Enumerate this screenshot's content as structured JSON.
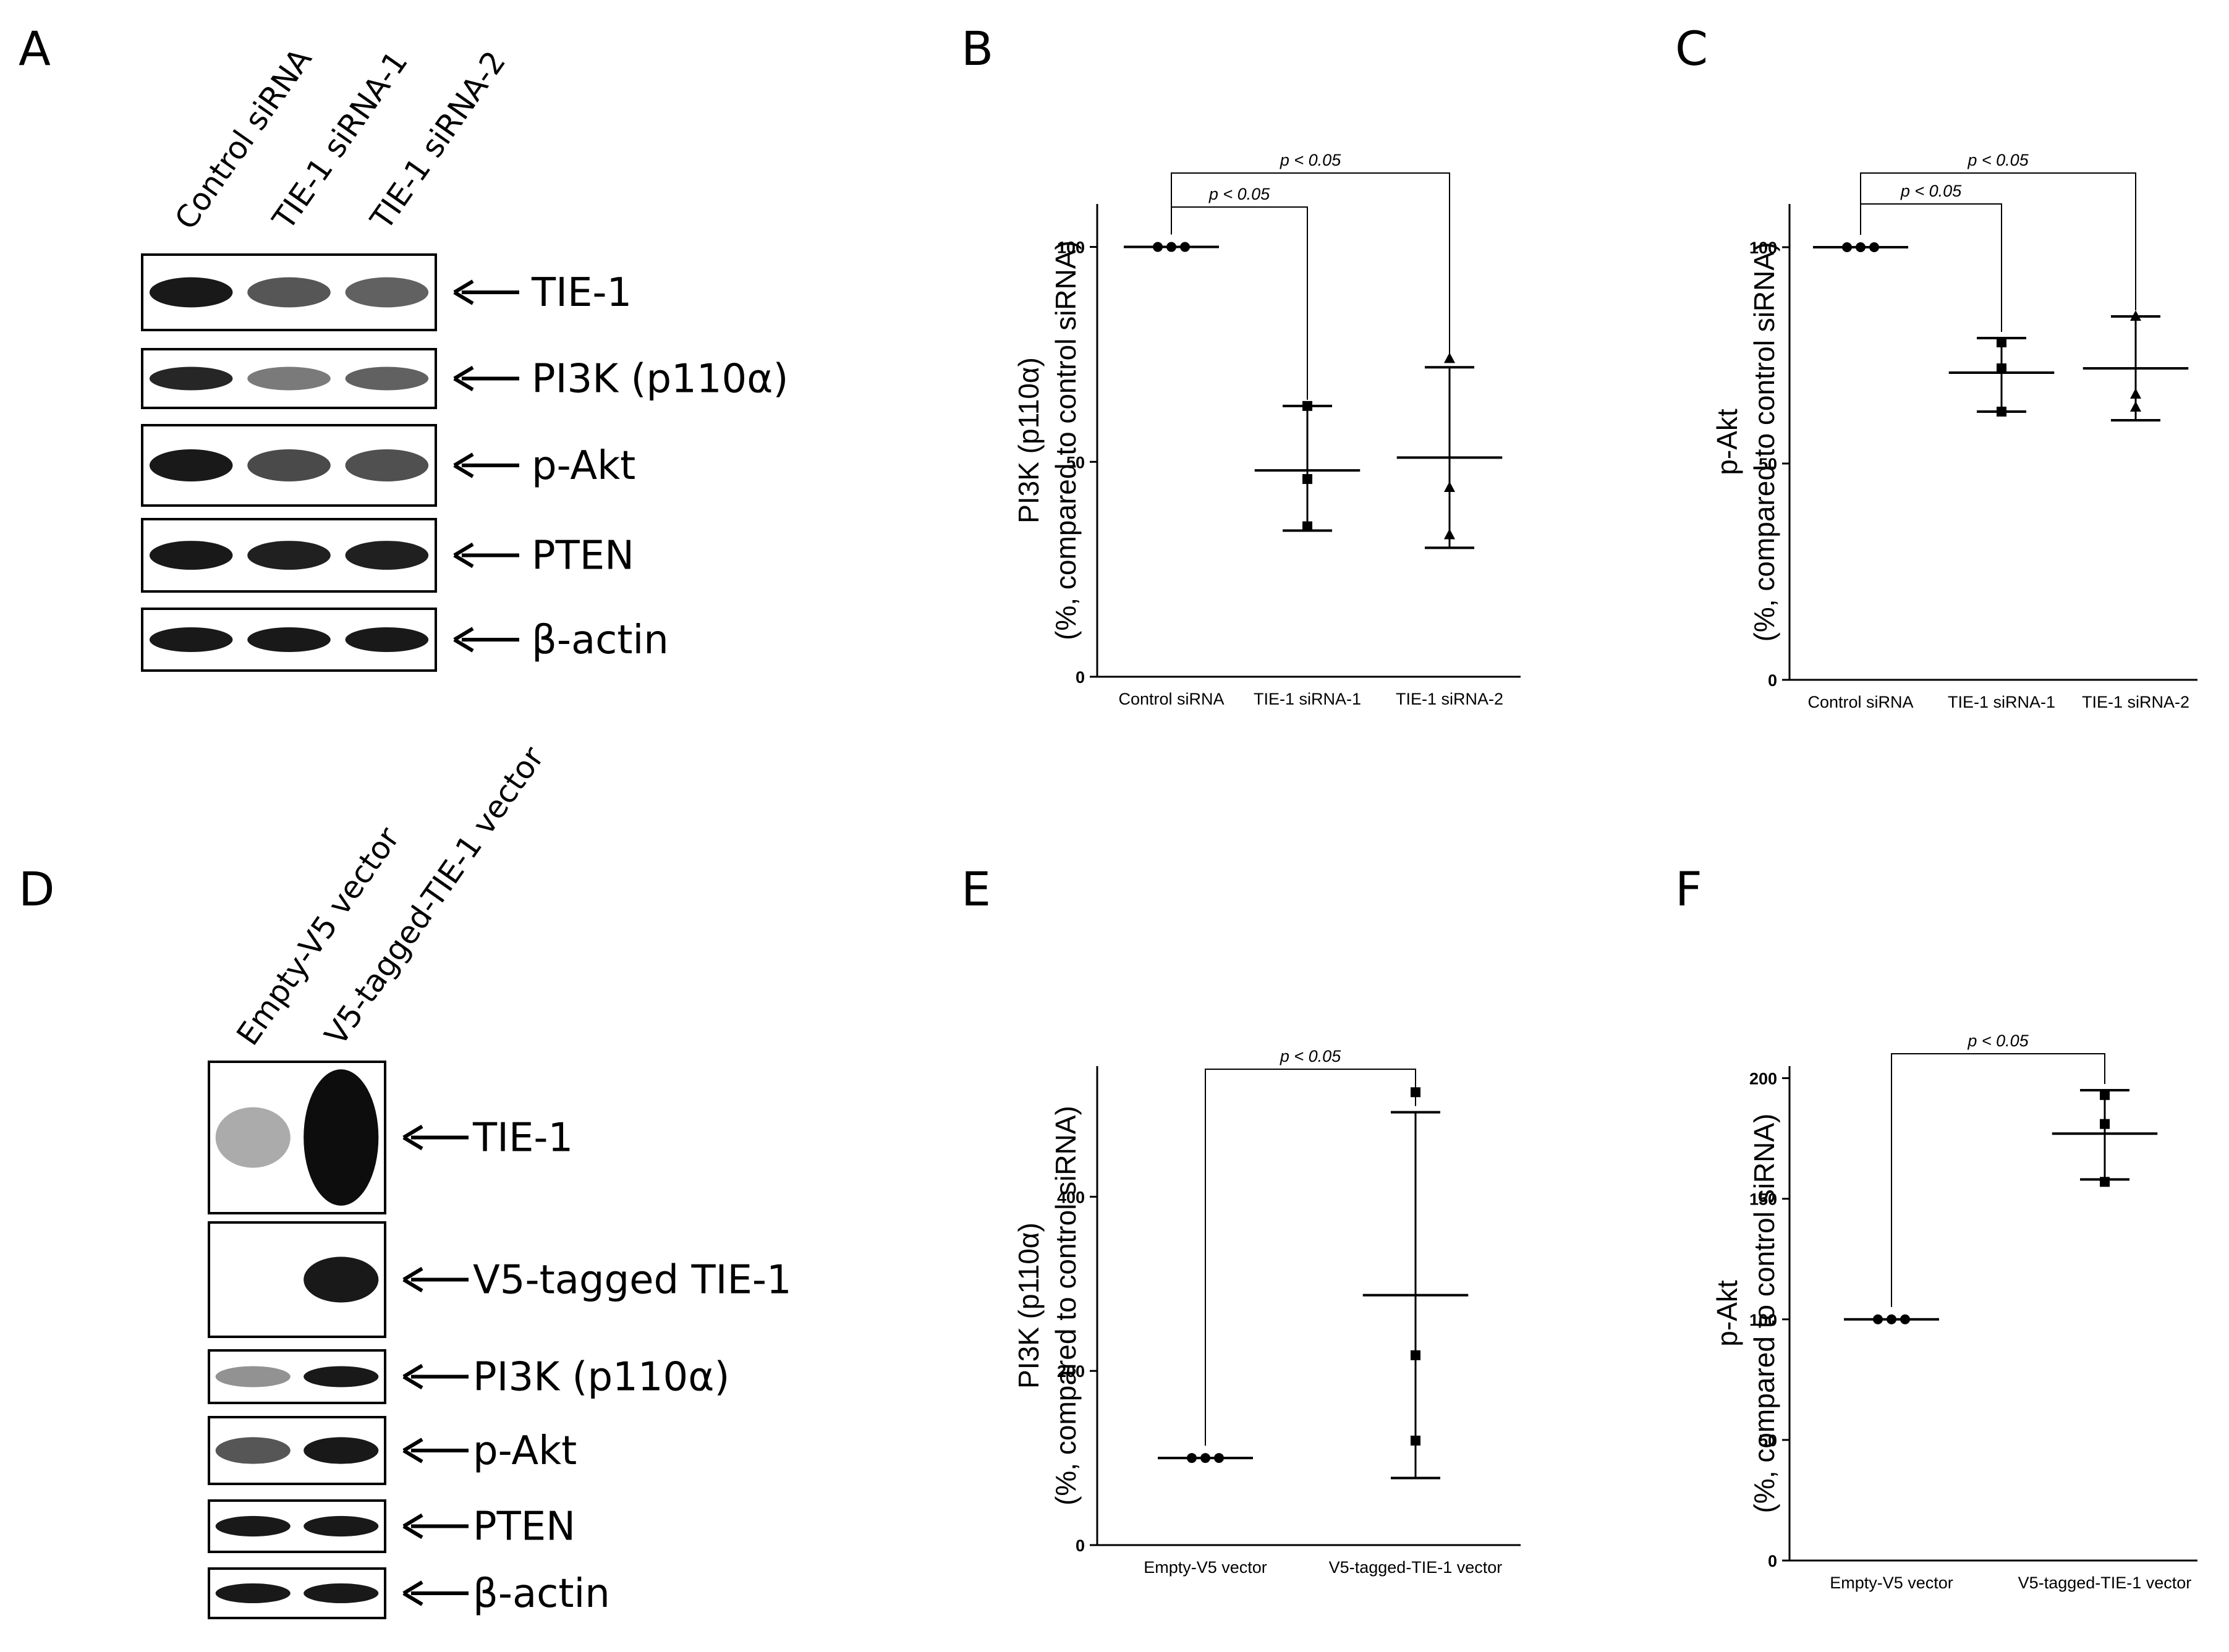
{
  "panels": {
    "A": "A",
    "B": "B",
    "C": "C",
    "D": "D",
    "E": "E",
    "F": "F"
  },
  "blots": [
    {
      "id": "A",
      "lanes": [
        "Control siRNA",
        "TIE-1 siRNA-1",
        "TIE-1 siRNA-2"
      ],
      "bands": [
        {
          "label": "TIE-1",
          "intensity": [
            0.95,
            0.7,
            0.65
          ]
        },
        {
          "label": "PI3K (p110α)",
          "intensity": [
            0.9,
            0.55,
            0.65
          ]
        },
        {
          "label": "p-Akt",
          "intensity": [
            0.95,
            0.75,
            0.72
          ]
        },
        {
          "label": "PTEN",
          "intensity": [
            0.95,
            0.92,
            0.92
          ]
        },
        {
          "label": "β-actin",
          "intensity": [
            0.95,
            0.95,
            0.95
          ]
        }
      ]
    },
    {
      "id": "D",
      "lanes": [
        "Empty-V5 vector",
        "V5-tagged-TIE-1 vector"
      ],
      "bands": [
        {
          "label": "TIE-1",
          "intensity": [
            0.35,
            1.0
          ]
        },
        {
          "label": "V5-tagged TIE-1",
          "intensity": [
            0.0,
            0.95
          ]
        },
        {
          "label": "PI3K (p110α)",
          "intensity": [
            0.45,
            0.95
          ]
        },
        {
          "label": "p-Akt",
          "intensity": [
            0.7,
            0.95
          ]
        },
        {
          "label": "PTEN",
          "intensity": [
            0.95,
            0.95
          ]
        },
        {
          "label": "β-actin",
          "intensity": [
            0.95,
            0.95
          ]
        }
      ]
    }
  ],
  "chart_data": [
    {
      "id": "B",
      "type": "scatter",
      "ylabel": [
        "PI3K (p110α)",
        "(%, compared to control siRNA)"
      ],
      "categories": [
        "Control siRNA",
        "TIE-1 siRNA-1",
        "TIE-1 siRNA-2"
      ],
      "markers": [
        "circle",
        "square",
        "triangle"
      ],
      "points": [
        [
          100,
          100,
          100
        ],
        [
          63,
          46,
          35
        ],
        [
          74,
          44,
          33
        ]
      ],
      "mean": [
        100,
        48,
        51
      ],
      "sd_upper": [
        100,
        63,
        72
      ],
      "sd_lower": [
        100,
        34,
        30
      ],
      "ylim": [
        0,
        110
      ],
      "yticks": [
        0,
        50,
        100
      ],
      "significance": [
        {
          "from": 0,
          "to": 1,
          "text": "p < 0.05"
        },
        {
          "from": 0,
          "to": 2,
          "text": "p < 0.05"
        }
      ]
    },
    {
      "id": "C",
      "type": "scatter",
      "ylabel": [
        "p-Akt",
        "(%, compared to control siRNA)"
      ],
      "categories": [
        "Control siRNA",
        "TIE-1 siRNA-1",
        "TIE-1 siRNA-2"
      ],
      "markers": [
        "circle",
        "square",
        "triangle"
      ],
      "points": [
        [
          100,
          100,
          100
        ],
        [
          78,
          72,
          62
        ],
        [
          84,
          66,
          63
        ]
      ],
      "mean": [
        100,
        71,
        72
      ],
      "sd_upper": [
        100,
        79,
        84
      ],
      "sd_lower": [
        100,
        62,
        60
      ],
      "ylim": [
        0,
        110
      ],
      "yticks": [
        0,
        50,
        100
      ],
      "significance": [
        {
          "from": 0,
          "to": 1,
          "text": "p < 0.05"
        },
        {
          "from": 0,
          "to": 2,
          "text": "p < 0.05"
        }
      ]
    },
    {
      "id": "E",
      "type": "scatter",
      "ylabel": [
        "PI3K (p110α)",
        "(%, compared to control siRNA)"
      ],
      "categories": [
        "Empty-V5 vector",
        "V5-tagged-TIE-1 vector"
      ],
      "markers": [
        "circle",
        "square"
      ],
      "points": [
        [
          100,
          100,
          100
        ],
        [
          520,
          218,
          120
        ]
      ],
      "mean": [
        100,
        287
      ],
      "sd_upper": [
        100,
        497
      ],
      "sd_lower": [
        100,
        77
      ],
      "ylim": [
        0,
        550
      ],
      "yticks": [
        0,
        200,
        400
      ],
      "significance": [
        {
          "from": 0,
          "to": 1,
          "text": "p < 0.05"
        }
      ]
    },
    {
      "id": "F",
      "type": "scatter",
      "ylabel": [
        "p-Akt",
        "(%, compared to control siRNA)"
      ],
      "categories": [
        "Empty-V5 vector",
        "V5-tagged-TIE-1 vector"
      ],
      "markers": [
        "circle",
        "square"
      ],
      "points": [
        [
          100,
          100,
          100
        ],
        [
          193,
          181,
          157
        ]
      ],
      "mean": [
        100,
        177
      ],
      "sd_upper": [
        100,
        195
      ],
      "sd_lower": [
        100,
        158
      ],
      "ylim": [
        0,
        205
      ],
      "yticks": [
        0,
        50,
        100,
        150,
        200
      ],
      "significance": [
        {
          "from": 0,
          "to": 1,
          "text": "p < 0.05"
        }
      ]
    }
  ]
}
